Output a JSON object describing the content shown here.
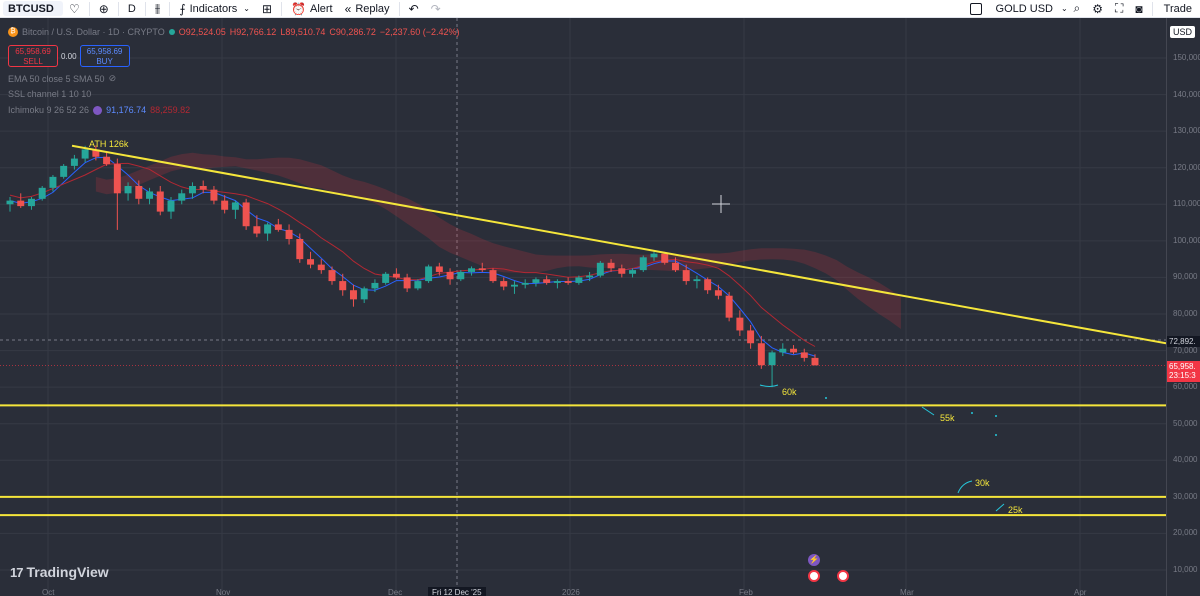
{
  "toolbar": {
    "symbol": "BTCUSD",
    "interval": "D",
    "indicators_label": "Indicators",
    "alert_label": "Alert",
    "replay_label": "Replay",
    "compare_symbol": "GOLD USD",
    "trade_label": "Trade"
  },
  "legend": {
    "title": "Bitcoin / U.S. Dollar · 1D · CRYPTO",
    "open": "O92,524.05",
    "high": "H92,766.12",
    "low": "L89,510.74",
    "close": "C90,286.72",
    "change": "−2,237.60 (−2.42%)",
    "sell_price": "65,958.69",
    "sell_label": "SELL",
    "spread": "0.00",
    "buy_price": "65,958.69",
    "buy_label": "BUY",
    "ema": "EMA 50 close 5 SMA 50",
    "ssl": "SSL channel 1 10 10",
    "ichimoku": "Ichimoku 9 26 52 26",
    "ichimoku_val1": "91,176.74",
    "ichimoku_val2": "88,259.82"
  },
  "axis": {
    "currency": "USD",
    "ticks": [
      "150,000",
      "140,000",
      "130,000",
      "120,000",
      "110,000",
      "100,000",
      "90,000",
      "80,000",
      "70,000",
      "60,000",
      "50,000",
      "40,000",
      "30,000",
      "20,000",
      "10,000"
    ],
    "crosshair_price": "72,892.",
    "last_price": "65,958.",
    "countdown": "23:15:3"
  },
  "annotations": {
    "ath": "ATH 126k",
    "k60": "60k",
    "k55": "55k",
    "k30": "30k",
    "k25": "25k"
  },
  "xaxis": {
    "labels": [
      "Oct",
      "Nov",
      "Dec",
      "2026",
      "Feb",
      "Mar",
      "Apr"
    ],
    "crosshair_date": "Fri 12 Dec '25"
  },
  "watermark": "TradingView",
  "colors": {
    "up": "#26a69a",
    "down": "#ef5350",
    "trendline": "#f5e63b",
    "background": "#2a2e39"
  },
  "chart_data": {
    "type": "candlestick",
    "symbol": "BTCUSD",
    "interval": "1D",
    "ylim": [
      5000,
      155000
    ],
    "candles": [
      [
        110000,
        112000,
        108000,
        111000
      ],
      [
        111000,
        113000,
        109000,
        109500
      ],
      [
        109500,
        112000,
        108500,
        111500
      ],
      [
        111500,
        115000,
        111000,
        114500
      ],
      [
        114500,
        118000,
        113500,
        117500
      ],
      [
        117500,
        121000,
        117000,
        120500
      ],
      [
        120500,
        123500,
        119500,
        122500
      ],
      [
        122500,
        126000,
        121500,
        125000
      ],
      [
        125000,
        126100,
        122000,
        123000
      ],
      [
        123000,
        124500,
        120500,
        121000
      ],
      [
        121000,
        122500,
        103000,
        113000
      ],
      [
        113000,
        116000,
        111000,
        115000
      ],
      [
        115000,
        116500,
        110000,
        111500
      ],
      [
        111500,
        114500,
        110000,
        113500
      ],
      [
        113500,
        115000,
        107000,
        108000
      ],
      [
        108000,
        112000,
        106000,
        111000
      ],
      [
        111000,
        114000,
        110000,
        113000
      ],
      [
        113000,
        116000,
        111500,
        115000
      ],
      [
        115000,
        116500,
        113000,
        114000
      ],
      [
        114000,
        115000,
        110000,
        111000
      ],
      [
        111000,
        112500,
        107500,
        108500
      ],
      [
        108500,
        111000,
        106000,
        110500
      ],
      [
        110500,
        111500,
        103000,
        104000
      ],
      [
        104000,
        107000,
        101000,
        102000
      ],
      [
        102000,
        105000,
        100000,
        104500
      ],
      [
        104500,
        106000,
        102500,
        103000
      ],
      [
        103000,
        104500,
        99000,
        100500
      ],
      [
        100500,
        102000,
        94000,
        95000
      ],
      [
        95000,
        97000,
        92500,
        93500
      ],
      [
        93500,
        95000,
        91000,
        92000
      ],
      [
        92000,
        93000,
        88000,
        89000
      ],
      [
        89000,
        91000,
        85000,
        86500
      ],
      [
        86500,
        88000,
        82000,
        84000
      ],
      [
        84000,
        87500,
        83000,
        87000
      ],
      [
        87000,
        89500,
        86000,
        88500
      ],
      [
        88500,
        91500,
        88000,
        91000
      ],
      [
        91000,
        92500,
        89500,
        90000
      ],
      [
        90000,
        91000,
        86000,
        87000
      ],
      [
        87000,
        89500,
        86500,
        89000
      ],
      [
        89000,
        93500,
        88500,
        93000
      ],
      [
        93000,
        94000,
        90500,
        91500
      ],
      [
        91500,
        92500,
        88000,
        89500
      ],
      [
        89500,
        92000,
        89000,
        91500
      ],
      [
        91500,
        93000,
        90500,
        92500
      ],
      [
        92500,
        94000,
        91500,
        92000
      ],
      [
        92000,
        92500,
        88500,
        89000
      ],
      [
        89000,
        90000,
        86500,
        87500
      ],
      [
        87500,
        89000,
        85500,
        88000
      ],
      [
        88000,
        89500,
        87000,
        88500
      ],
      [
        88500,
        90000,
        87500,
        89500
      ],
      [
        89500,
        90500,
        88000,
        88500
      ],
      [
        88500,
        89500,
        87000,
        89000
      ],
      [
        89000,
        90000,
        88000,
        88500
      ],
      [
        88500,
        90500,
        88000,
        90000
      ],
      [
        90000,
        91500,
        89000,
        90500
      ],
      [
        90500,
        94500,
        90000,
        94000
      ],
      [
        94000,
        95000,
        91500,
        92500
      ],
      [
        92500,
        93500,
        90000,
        91000
      ],
      [
        91000,
        92500,
        90000,
        92000
      ],
      [
        92000,
        96000,
        91500,
        95500
      ],
      [
        95500,
        97500,
        94500,
        96500
      ],
      [
        96500,
        97000,
        93500,
        94000
      ],
      [
        94000,
        95500,
        91500,
        92000
      ],
      [
        92000,
        93500,
        88000,
        89000
      ],
      [
        89000,
        90500,
        87000,
        89500
      ],
      [
        89500,
        90000,
        85500,
        86500
      ],
      [
        86500,
        88000,
        84000,
        85000
      ],
      [
        85000,
        86000,
        78000,
        79000
      ],
      [
        79000,
        81000,
        74000,
        75500
      ],
      [
        75500,
        77000,
        70500,
        72000
      ],
      [
        72000,
        74000,
        65000,
        66000
      ],
      [
        66000,
        70000,
        60000,
        69500
      ],
      [
        69500,
        72000,
        68500,
        70500
      ],
      [
        70500,
        71500,
        69000,
        69500
      ],
      [
        69500,
        70500,
        67000,
        68000
      ],
      [
        68000,
        69000,
        66000,
        65959
      ]
    ],
    "levels": [
      55000,
      30000,
      25000
    ],
    "trendline": [
      {
        "date_label": "Oct",
        "value": 126000
      },
      {
        "date_label": "right edge",
        "value": 72000
      }
    ]
  }
}
